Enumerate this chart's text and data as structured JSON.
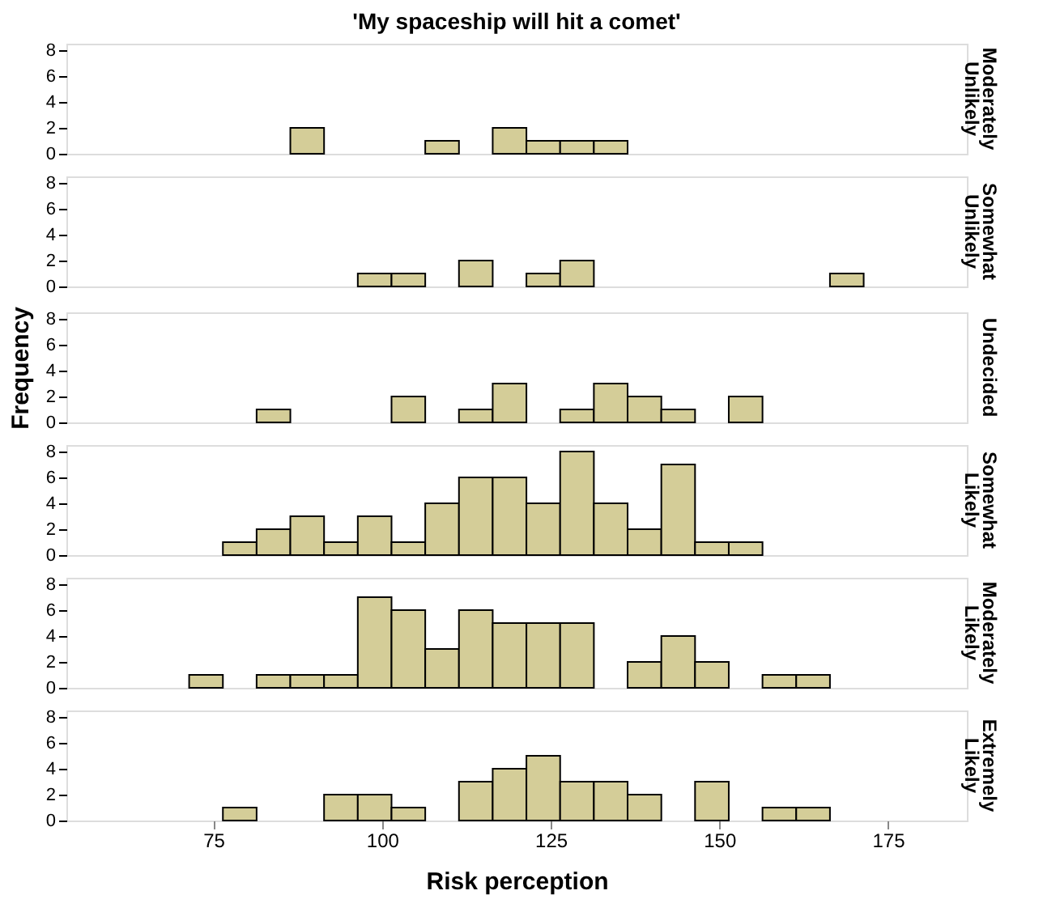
{
  "chart_data": [
    {
      "type": "histogram",
      "title": "'My spaceship will hit a comet'",
      "y2label": "Moderately Unlikely",
      "color": "#d4cd98",
      "bins": [
        71.4,
        76.4,
        81.4,
        86.4,
        91.4,
        96.4,
        101.4,
        106.4,
        111.4,
        116.4,
        121.4,
        126.4,
        131.4,
        136.4,
        141.4,
        146.4,
        151.4,
        156.4,
        161.4,
        166.4,
        171.4
      ],
      "values": [
        0,
        0,
        0,
        2,
        0,
        0,
        0,
        1,
        0,
        2,
        1,
        1,
        1,
        0,
        0,
        0,
        0,
        0,
        0,
        0
      ],
      "xlim": [
        53.2,
        186.7
      ],
      "xticks": [
        75,
        100,
        125,
        150,
        175
      ],
      "ylim": [
        0,
        8.5
      ],
      "yticks": [
        0,
        2,
        4,
        6,
        8
      ],
      "tick_labels": "y"
    },
    {
      "type": "histogram",
      "y2label": "Somewhat Unlikely",
      "color": "#d4cd98",
      "bins": [
        71.4,
        76.4,
        81.4,
        86.4,
        91.4,
        96.4,
        101.4,
        106.4,
        111.4,
        116.4,
        121.4,
        126.4,
        131.4,
        136.4,
        141.4,
        146.4,
        151.4,
        156.4,
        161.4,
        166.4,
        171.4
      ],
      "values": [
        0,
        0,
        0,
        0,
        0,
        1,
        1,
        0,
        2,
        0,
        1,
        2,
        0,
        0,
        0,
        0,
        0,
        0,
        0,
        1
      ],
      "xlim": [
        53.2,
        186.7
      ],
      "xticks": [
        75,
        100,
        125,
        150,
        175
      ],
      "ylim": [
        0,
        8.5
      ],
      "yticks": [
        0,
        2,
        4,
        6,
        8
      ],
      "tick_labels": "y"
    },
    {
      "type": "histogram",
      "y2label": "Undecided",
      "ylabel": "Frequency",
      "color": "#d4cd98",
      "bins": [
        71.4,
        76.4,
        81.4,
        86.4,
        91.4,
        96.4,
        101.4,
        106.4,
        111.4,
        116.4,
        121.4,
        126.4,
        131.4,
        136.4,
        141.4,
        146.4,
        151.4,
        156.4,
        161.4,
        166.4,
        171.4
      ],
      "values": [
        0,
        0,
        1,
        0,
        0,
        0,
        2,
        0,
        1,
        3,
        0,
        1,
        3,
        2,
        1,
        0,
        2,
        0,
        0,
        0
      ],
      "xlim": [
        53.2,
        186.7
      ],
      "xticks": [
        75,
        100,
        125,
        150,
        175
      ],
      "ylim": [
        0,
        8.5
      ],
      "yticks": [
        0,
        2,
        4,
        6,
        8
      ],
      "tick_labels": "y"
    },
    {
      "type": "histogram",
      "y2label": "Somewhat Likely",
      "color": "#d4cd98",
      "bins": [
        71.4,
        76.4,
        81.4,
        86.4,
        91.4,
        96.4,
        101.4,
        106.4,
        111.4,
        116.4,
        121.4,
        126.4,
        131.4,
        136.4,
        141.4,
        146.4,
        151.4,
        156.4,
        161.4,
        166.4,
        171.4
      ],
      "values": [
        0,
        1,
        2,
        3,
        1,
        3,
        1,
        4,
        6,
        6,
        4,
        8,
        4,
        2,
        7,
        1,
        1,
        0,
        0,
        0
      ],
      "xlim": [
        53.2,
        186.7
      ],
      "xticks": [
        75,
        100,
        125,
        150,
        175
      ],
      "ylim": [
        0,
        8.5
      ],
      "yticks": [
        0,
        2,
        4,
        6,
        8
      ],
      "tick_labels": "y"
    },
    {
      "type": "histogram",
      "y2label": "Moderately Likely",
      "color": "#d4cd98",
      "bins": [
        71.4,
        76.4,
        81.4,
        86.4,
        91.4,
        96.4,
        101.4,
        106.4,
        111.4,
        116.4,
        121.4,
        126.4,
        131.4,
        136.4,
        141.4,
        146.4,
        151.4,
        156.4,
        161.4,
        166.4,
        171.4
      ],
      "values": [
        1,
        0,
        1,
        1,
        1,
        7,
        6,
        3,
        6,
        5,
        5,
        5,
        0,
        2,
        4,
        2,
        0,
        1,
        1,
        0
      ],
      "xlim": [
        53.2,
        186.7
      ],
      "xticks": [
        75,
        100,
        125,
        150,
        175
      ],
      "ylim": [
        0,
        8.5
      ],
      "yticks": [
        0,
        2,
        4,
        6,
        8
      ],
      "tick_labels": "y"
    },
    {
      "type": "histogram",
      "y2label": "Extremely Likely",
      "xlabel": "Risk perception",
      "color": "#d4cd98",
      "bins": [
        71.4,
        76.4,
        81.4,
        86.4,
        91.4,
        96.4,
        101.4,
        106.4,
        111.4,
        116.4,
        121.4,
        126.4,
        131.4,
        136.4,
        141.4,
        146.4,
        151.4,
        156.4,
        161.4,
        166.4,
        171.4
      ],
      "values": [
        0,
        1,
        0,
        0,
        2,
        2,
        1,
        0,
        3,
        4,
        5,
        3,
        3,
        2,
        0,
        3,
        0,
        1,
        1,
        0
      ],
      "xlim": [
        53.2,
        186.7
      ],
      "xticks": [
        75,
        100,
        125,
        150,
        175
      ],
      "ylim": [
        0,
        8.5
      ],
      "yticks": [
        0,
        2,
        4,
        6,
        8
      ]
    }
  ]
}
